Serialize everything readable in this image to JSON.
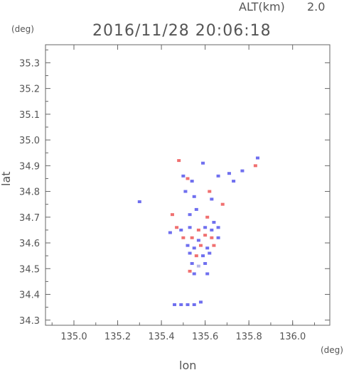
{
  "header": {
    "alt_label": "ALT(km)",
    "alt_value": "2.0",
    "timestamp": "2016/11/28 20:06:18",
    "y_unit": "(deg)",
    "x_unit": "(deg)"
  },
  "colors": {
    "axis": "#666666",
    "positive": "#f07070",
    "negative": "#6f6fef",
    "neutral": "#b8b8e8"
  },
  "chart_data": {
    "type": "heatmap",
    "title": "2016/11/28 20:06:18",
    "xlabel": "lon",
    "ylabel": "lat",
    "xlim": [
      134.87,
      136.17
    ],
    "ylim": [
      34.28,
      35.37
    ],
    "grid": false,
    "x_ticks": [
      "135.0",
      "135.2",
      "135.4",
      "135.6",
      "135.8",
      "136.0"
    ],
    "x_tick_values": [
      135.0,
      135.2,
      135.4,
      135.6,
      135.8,
      136.0
    ],
    "y_ticks": [
      "34.3",
      "34.4",
      "34.5",
      "34.6",
      "34.7",
      "34.8",
      "34.9",
      "35.0",
      "35.1",
      "35.2",
      "35.3"
    ],
    "y_tick_values": [
      34.3,
      34.4,
      34.5,
      34.6,
      34.7,
      34.8,
      34.9,
      35.0,
      35.1,
      35.2,
      35.3
    ],
    "points": [
      {
        "lon": 135.48,
        "lat": 34.92,
        "c": "pos"
      },
      {
        "lon": 135.5,
        "lat": 34.86,
        "c": "neg"
      },
      {
        "lon": 135.52,
        "lat": 34.85,
        "c": "pos"
      },
      {
        "lon": 135.54,
        "lat": 34.84,
        "c": "neg"
      },
      {
        "lon": 135.51,
        "lat": 34.8,
        "c": "neg"
      },
      {
        "lon": 135.55,
        "lat": 34.78,
        "c": "neg"
      },
      {
        "lon": 135.59,
        "lat": 34.91,
        "c": "neg"
      },
      {
        "lon": 135.62,
        "lat": 34.8,
        "c": "pos"
      },
      {
        "lon": 135.63,
        "lat": 34.77,
        "c": "neg"
      },
      {
        "lon": 135.66,
        "lat": 34.86,
        "c": "neg"
      },
      {
        "lon": 135.71,
        "lat": 34.87,
        "c": "neg"
      },
      {
        "lon": 135.73,
        "lat": 34.84,
        "c": "neg"
      },
      {
        "lon": 135.68,
        "lat": 34.75,
        "c": "pos"
      },
      {
        "lon": 135.77,
        "lat": 34.88,
        "c": "neg"
      },
      {
        "lon": 135.83,
        "lat": 34.9,
        "c": "pos"
      },
      {
        "lon": 135.84,
        "lat": 34.93,
        "c": "neg"
      },
      {
        "lon": 135.3,
        "lat": 34.76,
        "c": "neg"
      },
      {
        "lon": 135.45,
        "lat": 34.71,
        "c": "pos"
      },
      {
        "lon": 135.53,
        "lat": 34.71,
        "c": "neg"
      },
      {
        "lon": 135.56,
        "lat": 34.73,
        "c": "neg"
      },
      {
        "lon": 135.61,
        "lat": 34.7,
        "c": "pos"
      },
      {
        "lon": 135.64,
        "lat": 34.68,
        "c": "neg"
      },
      {
        "lon": 135.47,
        "lat": 34.66,
        "c": "pos"
      },
      {
        "lon": 135.44,
        "lat": 34.64,
        "c": "neg"
      },
      {
        "lon": 135.49,
        "lat": 34.65,
        "c": "neg"
      },
      {
        "lon": 135.53,
        "lat": 34.66,
        "c": "neg"
      },
      {
        "lon": 135.57,
        "lat": 34.65,
        "c": "pos"
      },
      {
        "lon": 135.6,
        "lat": 34.66,
        "c": "neg"
      },
      {
        "lon": 135.63,
        "lat": 34.65,
        "c": "neg"
      },
      {
        "lon": 135.66,
        "lat": 34.66,
        "c": "neg"
      },
      {
        "lon": 135.5,
        "lat": 34.62,
        "c": "pos"
      },
      {
        "lon": 135.54,
        "lat": 34.62,
        "c": "pos"
      },
      {
        "lon": 135.57,
        "lat": 34.61,
        "c": "neg"
      },
      {
        "lon": 135.6,
        "lat": 34.63,
        "c": "pos"
      },
      {
        "lon": 135.63,
        "lat": 34.62,
        "c": "pos"
      },
      {
        "lon": 135.66,
        "lat": 34.62,
        "c": "neg"
      },
      {
        "lon": 135.52,
        "lat": 34.59,
        "c": "neg"
      },
      {
        "lon": 135.55,
        "lat": 34.58,
        "c": "neg"
      },
      {
        "lon": 135.58,
        "lat": 34.59,
        "c": "pos"
      },
      {
        "lon": 135.61,
        "lat": 34.58,
        "c": "neg"
      },
      {
        "lon": 135.64,
        "lat": 34.59,
        "c": "pos"
      },
      {
        "lon": 135.53,
        "lat": 34.56,
        "c": "neg"
      },
      {
        "lon": 135.56,
        "lat": 34.55,
        "c": "pos"
      },
      {
        "lon": 135.59,
        "lat": 34.55,
        "c": "neg"
      },
      {
        "lon": 135.62,
        "lat": 34.56,
        "c": "neg"
      },
      {
        "lon": 135.54,
        "lat": 34.52,
        "c": "neg"
      },
      {
        "lon": 135.57,
        "lat": 34.51,
        "c": "neu"
      },
      {
        "lon": 135.6,
        "lat": 34.52,
        "c": "neg"
      },
      {
        "lon": 135.53,
        "lat": 34.49,
        "c": "pos"
      },
      {
        "lon": 135.55,
        "lat": 34.48,
        "c": "neg"
      },
      {
        "lon": 135.61,
        "lat": 34.48,
        "c": "neg"
      },
      {
        "lon": 135.46,
        "lat": 34.36,
        "c": "neg"
      },
      {
        "lon": 135.49,
        "lat": 34.36,
        "c": "neg"
      },
      {
        "lon": 135.52,
        "lat": 34.36,
        "c": "neg"
      },
      {
        "lon": 135.55,
        "lat": 34.36,
        "c": "neg"
      },
      {
        "lon": 135.58,
        "lat": 34.37,
        "c": "neg"
      }
    ]
  }
}
